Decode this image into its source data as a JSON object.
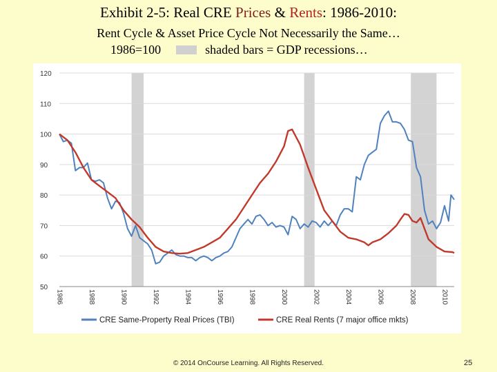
{
  "slide": {
    "title_part1": "Exhibit 2-5: Real CRE ",
    "title_prices": "Prices",
    "title_amp": " & ",
    "title_rents": "Rents",
    "title_part2": ": 1986-2010:",
    "subtitle": "Rent Cycle & Asset Price Cycle Not Necessarily the Same…",
    "base_note": "1986=100",
    "shading_note": "shaded bars = GDP recessions…",
    "footer": "© 2014 OnCourse Learning. All Rights Reserved.",
    "page_number": "25"
  },
  "chart_data": {
    "type": "line",
    "title": "",
    "xlabel": "",
    "ylabel": "",
    "xlim": [
      1986,
      2010.6
    ],
    "ylim": [
      50,
      120
    ],
    "y_ticks": [
      50,
      60,
      70,
      80,
      90,
      100,
      110,
      120
    ],
    "x_ticks": [
      1986,
      1988,
      1990,
      1992,
      1994,
      1996,
      1998,
      2000,
      2002,
      2004,
      2006,
      2008,
      2010
    ],
    "x_tick_labels": [
      "1986",
      "1988",
      "1990",
      "1992",
      "1994",
      "1996",
      "1998",
      "2000",
      "2002",
      "2004",
      "2006",
      "2008",
      "2010"
    ],
    "grid": "horizontal",
    "legend_position": "bottom",
    "recessions": [
      [
        1990.5,
        1991.25
      ],
      [
        2001.25,
        2001.9
      ],
      [
        2007.9,
        2009.5
      ]
    ],
    "recession_color": "#d3d3d3",
    "series": [
      {
        "name": "CRE Same-Property Real Prices (TBI)",
        "color": "#4f81bd",
        "points": [
          [
            1986.0,
            100
          ],
          [
            1986.25,
            97.5
          ],
          [
            1986.5,
            98
          ],
          [
            1986.75,
            97
          ],
          [
            1987.0,
            88
          ],
          [
            1987.25,
            89
          ],
          [
            1987.5,
            89
          ],
          [
            1987.75,
            90.5
          ],
          [
            1988.0,
            85
          ],
          [
            1988.25,
            84.5
          ],
          [
            1988.5,
            85
          ],
          [
            1988.75,
            84
          ],
          [
            1989.0,
            79
          ],
          [
            1989.25,
            75.5
          ],
          [
            1989.5,
            78
          ],
          [
            1989.75,
            77.5
          ],
          [
            1990.0,
            74
          ],
          [
            1990.25,
            69
          ],
          [
            1990.5,
            66.5
          ],
          [
            1990.75,
            70
          ],
          [
            1991.0,
            66
          ],
          [
            1991.25,
            65
          ],
          [
            1991.5,
            64
          ],
          [
            1991.75,
            62
          ],
          [
            1992.0,
            57.5
          ],
          [
            1992.25,
            58
          ],
          [
            1992.5,
            60
          ],
          [
            1992.75,
            61
          ],
          [
            1993.0,
            62
          ],
          [
            1993.25,
            60.5
          ],
          [
            1993.5,
            60
          ],
          [
            1993.75,
            60
          ],
          [
            1994.0,
            59.5
          ],
          [
            1994.25,
            59.5
          ],
          [
            1994.5,
            58.5
          ],
          [
            1994.75,
            59.5
          ],
          [
            1995.0,
            60
          ],
          [
            1995.25,
            59.5
          ],
          [
            1995.5,
            58.5
          ],
          [
            1995.75,
            59.5
          ],
          [
            1996.0,
            60
          ],
          [
            1996.25,
            61
          ],
          [
            1996.5,
            61.5
          ],
          [
            1996.75,
            63
          ],
          [
            1997.0,
            66
          ],
          [
            1997.25,
            69
          ],
          [
            1997.5,
            70.5
          ],
          [
            1997.75,
            72
          ],
          [
            1998.0,
            70.5
          ],
          [
            1998.25,
            73
          ],
          [
            1998.5,
            73.5
          ],
          [
            1998.75,
            72
          ],
          [
            1999.0,
            70
          ],
          [
            1999.25,
            71
          ],
          [
            1999.5,
            69.5
          ],
          [
            1999.75,
            70
          ],
          [
            2000.0,
            69.5
          ],
          [
            2000.25,
            67
          ],
          [
            2000.5,
            73
          ],
          [
            2000.75,
            72
          ],
          [
            2001.0,
            69
          ],
          [
            2001.25,
            70.5
          ],
          [
            2001.5,
            69.5
          ],
          [
            2001.75,
            71.5
          ],
          [
            2002.0,
            71
          ],
          [
            2002.25,
            69.5
          ],
          [
            2002.5,
            71.5
          ],
          [
            2002.75,
            70
          ],
          [
            2003.0,
            71.5
          ],
          [
            2003.25,
            70
          ],
          [
            2003.5,
            73.5
          ],
          [
            2003.75,
            75.5
          ],
          [
            2004.0,
            75.5
          ],
          [
            2004.25,
            74.5
          ],
          [
            2004.5,
            86
          ],
          [
            2004.75,
            85
          ],
          [
            2005.0,
            90
          ],
          [
            2005.25,
            93
          ],
          [
            2005.5,
            94
          ],
          [
            2005.75,
            95
          ],
          [
            2006.0,
            103.5
          ],
          [
            2006.25,
            106
          ],
          [
            2006.5,
            107.5
          ],
          [
            2006.75,
            104
          ],
          [
            2007.0,
            104
          ],
          [
            2007.25,
            103.5
          ],
          [
            2007.5,
            101.5
          ],
          [
            2007.75,
            98
          ],
          [
            2008.0,
            97.5
          ],
          [
            2008.25,
            89
          ],
          [
            2008.5,
            86
          ],
          [
            2008.75,
            75
          ],
          [
            2009.0,
            70.5
          ],
          [
            2009.25,
            71.5
          ],
          [
            2009.5,
            69
          ],
          [
            2009.75,
            71
          ],
          [
            2010.0,
            76.5
          ],
          [
            2010.25,
            71.5
          ],
          [
            2010.4,
            80
          ],
          [
            2010.6,
            78.5
          ]
        ]
      },
      {
        "name": "CRE Real Rents (7 major office mkts)",
        "color": "#c0392b",
        "points": [
          [
            1986.0,
            100
          ],
          [
            1986.5,
            98
          ],
          [
            1987.0,
            94
          ],
          [
            1987.5,
            89
          ],
          [
            1988.0,
            85
          ],
          [
            1988.5,
            83
          ],
          [
            1989.0,
            81
          ],
          [
            1989.5,
            79
          ],
          [
            1990.0,
            75
          ],
          [
            1990.5,
            72
          ],
          [
            1991.0,
            69.5
          ],
          [
            1991.5,
            66
          ],
          [
            1992.0,
            63
          ],
          [
            1992.5,
            61.5
          ],
          [
            1993.0,
            61
          ],
          [
            1993.5,
            60.8
          ],
          [
            1994.0,
            61
          ],
          [
            1994.5,
            62
          ],
          [
            1995.0,
            63
          ],
          [
            1995.5,
            64.5
          ],
          [
            1996.0,
            66
          ],
          [
            1996.5,
            69
          ],
          [
            1997.0,
            72
          ],
          [
            1997.5,
            76
          ],
          [
            1998.0,
            80
          ],
          [
            1998.5,
            84
          ],
          [
            1999.0,
            87
          ],
          [
            1999.5,
            91
          ],
          [
            2000.0,
            96
          ],
          [
            2000.25,
            101
          ],
          [
            2000.5,
            101.5
          ],
          [
            2000.75,
            99
          ],
          [
            2001.0,
            96.5
          ],
          [
            2001.5,
            89
          ],
          [
            2002.0,
            82
          ],
          [
            2002.5,
            75
          ],
          [
            2003.0,
            71.5
          ],
          [
            2003.5,
            68
          ],
          [
            2004.0,
            66
          ],
          [
            2004.5,
            65.5
          ],
          [
            2005.0,
            64.5
          ],
          [
            2005.25,
            63.5
          ],
          [
            2005.5,
            64.5
          ],
          [
            2006.0,
            65.5
          ],
          [
            2006.5,
            67.5
          ],
          [
            2007.0,
            70
          ],
          [
            2007.25,
            72
          ],
          [
            2007.5,
            73.8
          ],
          [
            2007.75,
            73.5
          ],
          [
            2008.0,
            71.5
          ],
          [
            2008.25,
            71
          ],
          [
            2008.5,
            72.5
          ],
          [
            2008.75,
            69
          ],
          [
            2009.0,
            65.5
          ],
          [
            2009.5,
            63
          ],
          [
            2010.0,
            61.5
          ],
          [
            2010.5,
            61.3
          ],
          [
            2010.6,
            61
          ]
        ]
      }
    ]
  }
}
